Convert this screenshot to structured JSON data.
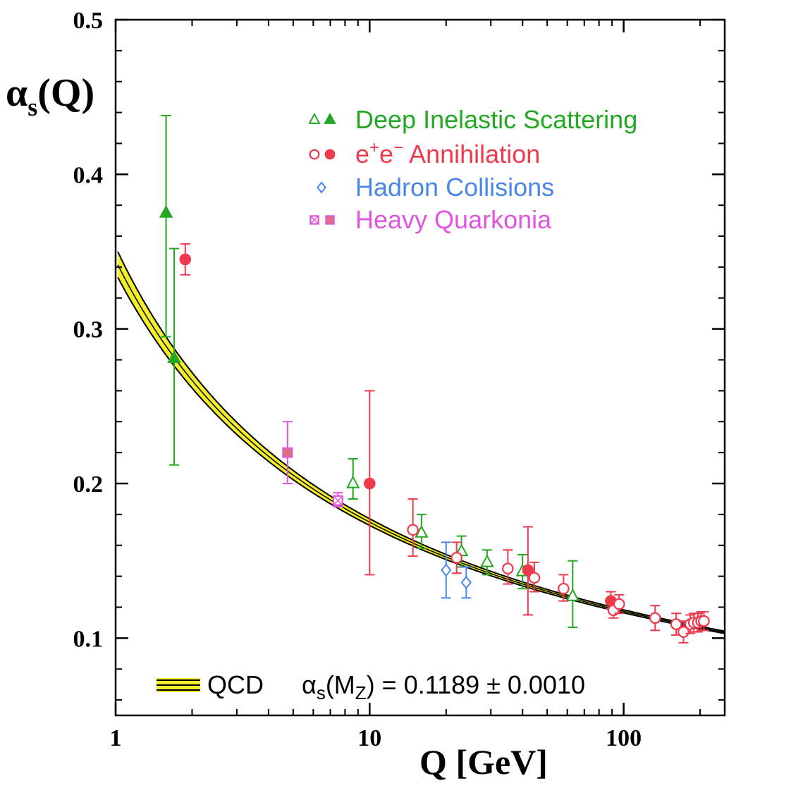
{
  "chart_data": {
    "type": "scatter",
    "x_scale": "log",
    "xlim": [
      1,
      250
    ],
    "ylim": [
      0.05,
      0.5
    ],
    "xlabel": "Q [GeV]",
    "ylabel_main": "α",
    "ylabel_sub": "s",
    "ylabel_tail": "(Q)",
    "x_ticks": [
      {
        "value": 1,
        "label": "1"
      },
      {
        "value": 10,
        "label": "10"
      },
      {
        "value": 100,
        "label": "100"
      }
    ],
    "y_ticks": [
      {
        "value": 0.1,
        "label": "0.1"
      },
      {
        "value": 0.2,
        "label": "0.2"
      },
      {
        "value": 0.3,
        "label": "0.3"
      },
      {
        "value": 0.4,
        "label": "0.4"
      },
      {
        "value": 0.5,
        "label": "0.5"
      }
    ],
    "theory": {
      "label": "QCD",
      "formula_prefix": "α",
      "formula_sub": "s",
      "formula_arg": "(M",
      "formula_arg_sub": "Z",
      "formula_value": ") = 0.1189 ± 0.0010",
      "alpha_mz": 0.1189,
      "mz": 91.19,
      "band_color": "#f2ee2a",
      "line_color": "#000000"
    },
    "legend": [
      {
        "key": "dis",
        "label": "Deep Inelastic Scattering",
        "color": "#22a822",
        "markers": [
          "triangle-open",
          "triangle-filled"
        ]
      },
      {
        "key": "ee",
        "label_pre": "e",
        "label_sup1": "+",
        "label_mid": "e",
        "label_sup2": "−",
        "label_post": " Annihilation",
        "color": "#ee3a4c",
        "markers": [
          "circle-open",
          "circle-filled"
        ]
      },
      {
        "key": "hadron",
        "label": "Hadron Collisions",
        "color": "#4a86e8",
        "markers": [
          "diamond-open"
        ]
      },
      {
        "key": "quarkonia",
        "label": "Heavy Quarkonia",
        "color": "#e055e0",
        "markers": [
          "square-open",
          "square-filled"
        ]
      }
    ],
    "series": [
      {
        "name": "Deep Inelastic Scattering",
        "color": "#22a822",
        "points": [
          {
            "x": 1.58,
            "y": 0.375,
            "lo": 0.295,
            "hi": 0.438,
            "m": "triangle-filled"
          },
          {
            "x": 1.7,
            "y": 0.281,
            "lo": 0.212,
            "hi": 0.352,
            "m": "triangle-filled"
          },
          {
            "x": 8.6,
            "y": 0.2,
            "lo": 0.19,
            "hi": 0.216,
            "m": "triangle-open"
          },
          {
            "x": 16,
            "y": 0.168,
            "lo": 0.158,
            "hi": 0.18,
            "m": "triangle-open"
          },
          {
            "x": 23,
            "y": 0.156,
            "lo": 0.146,
            "hi": 0.166,
            "m": "triangle-open"
          },
          {
            "x": 29,
            "y": 0.149,
            "lo": 0.141,
            "hi": 0.157,
            "m": "triangle-open"
          },
          {
            "x": 40,
            "y": 0.143,
            "lo": 0.132,
            "hi": 0.154,
            "m": "triangle-open"
          },
          {
            "x": 63,
            "y": 0.127,
            "lo": 0.107,
            "hi": 0.15,
            "m": "triangle-open"
          }
        ]
      },
      {
        "name": "e+e− Annihilation",
        "color": "#ee3a4c",
        "points": [
          {
            "x": 1.88,
            "y": 0.345,
            "lo": 0.335,
            "hi": 0.355,
            "m": "circle-filled"
          },
          {
            "x": 10.0,
            "y": 0.2,
            "lo": 0.141,
            "hi": 0.26,
            "m": "circle-filled"
          },
          {
            "x": 14.8,
            "y": 0.17,
            "lo": 0.153,
            "hi": 0.19,
            "m": "circle-open"
          },
          {
            "x": 22,
            "y": 0.152,
            "lo": 0.142,
            "hi": 0.162,
            "m": "circle-open"
          },
          {
            "x": 35,
            "y": 0.145,
            "lo": 0.135,
            "hi": 0.157,
            "m": "circle-open"
          },
          {
            "x": 42,
            "y": 0.144,
            "lo": 0.115,
            "hi": 0.172,
            "m": "circle-filled"
          },
          {
            "x": 44.5,
            "y": 0.139,
            "lo": 0.13,
            "hi": 0.149,
            "m": "circle-open"
          },
          {
            "x": 58,
            "y": 0.132,
            "lo": 0.124,
            "hi": 0.141,
            "m": "circle-open"
          },
          {
            "x": 89,
            "y": 0.124,
            "lo": 0.119,
            "hi": 0.13,
            "m": "circle-filled"
          },
          {
            "x": 91.2,
            "y": 0.118,
            "lo": 0.113,
            "hi": 0.123,
            "m": "circle-open"
          },
          {
            "x": 96,
            "y": 0.122,
            "lo": 0.116,
            "hi": 0.128,
            "m": "circle-open"
          },
          {
            "x": 133,
            "y": 0.113,
            "lo": 0.105,
            "hi": 0.121,
            "m": "circle-open"
          },
          {
            "x": 161,
            "y": 0.109,
            "lo": 0.102,
            "hi": 0.116,
            "m": "circle-open"
          },
          {
            "x": 172,
            "y": 0.104,
            "lo": 0.097,
            "hi": 0.111,
            "m": "circle-open"
          },
          {
            "x": 183,
            "y": 0.109,
            "lo": 0.103,
            "hi": 0.115,
            "m": "circle-open"
          },
          {
            "x": 189,
            "y": 0.11,
            "lo": 0.104,
            "hi": 0.116,
            "m": "circle-open"
          },
          {
            "x": 196,
            "y": 0.11,
            "lo": 0.104,
            "hi": 0.116,
            "m": "circle-open"
          },
          {
            "x": 202,
            "y": 0.111,
            "lo": 0.105,
            "hi": 0.117,
            "m": "circle-open"
          },
          {
            "x": 207,
            "y": 0.111,
            "lo": 0.105,
            "hi": 0.117,
            "m": "circle-open"
          }
        ]
      },
      {
        "name": "Hadron Collisions",
        "color": "#4a86e8",
        "points": [
          {
            "x": 20,
            "y": 0.144,
            "lo": 0.126,
            "hi": 0.162,
            "m": "diamond-open"
          },
          {
            "x": 24,
            "y": 0.136,
            "lo": 0.126,
            "hi": 0.146,
            "m": "diamond-open"
          }
        ]
      },
      {
        "name": "Heavy Quarkonia",
        "color": "#e055e0",
        "points": [
          {
            "x": 4.75,
            "y": 0.22,
            "lo": 0.2,
            "hi": 0.24,
            "m": "square-filled"
          },
          {
            "x": 7.5,
            "y": 0.189,
            "lo": 0.185,
            "hi": 0.194,
            "m": "square-open"
          }
        ]
      }
    ]
  }
}
